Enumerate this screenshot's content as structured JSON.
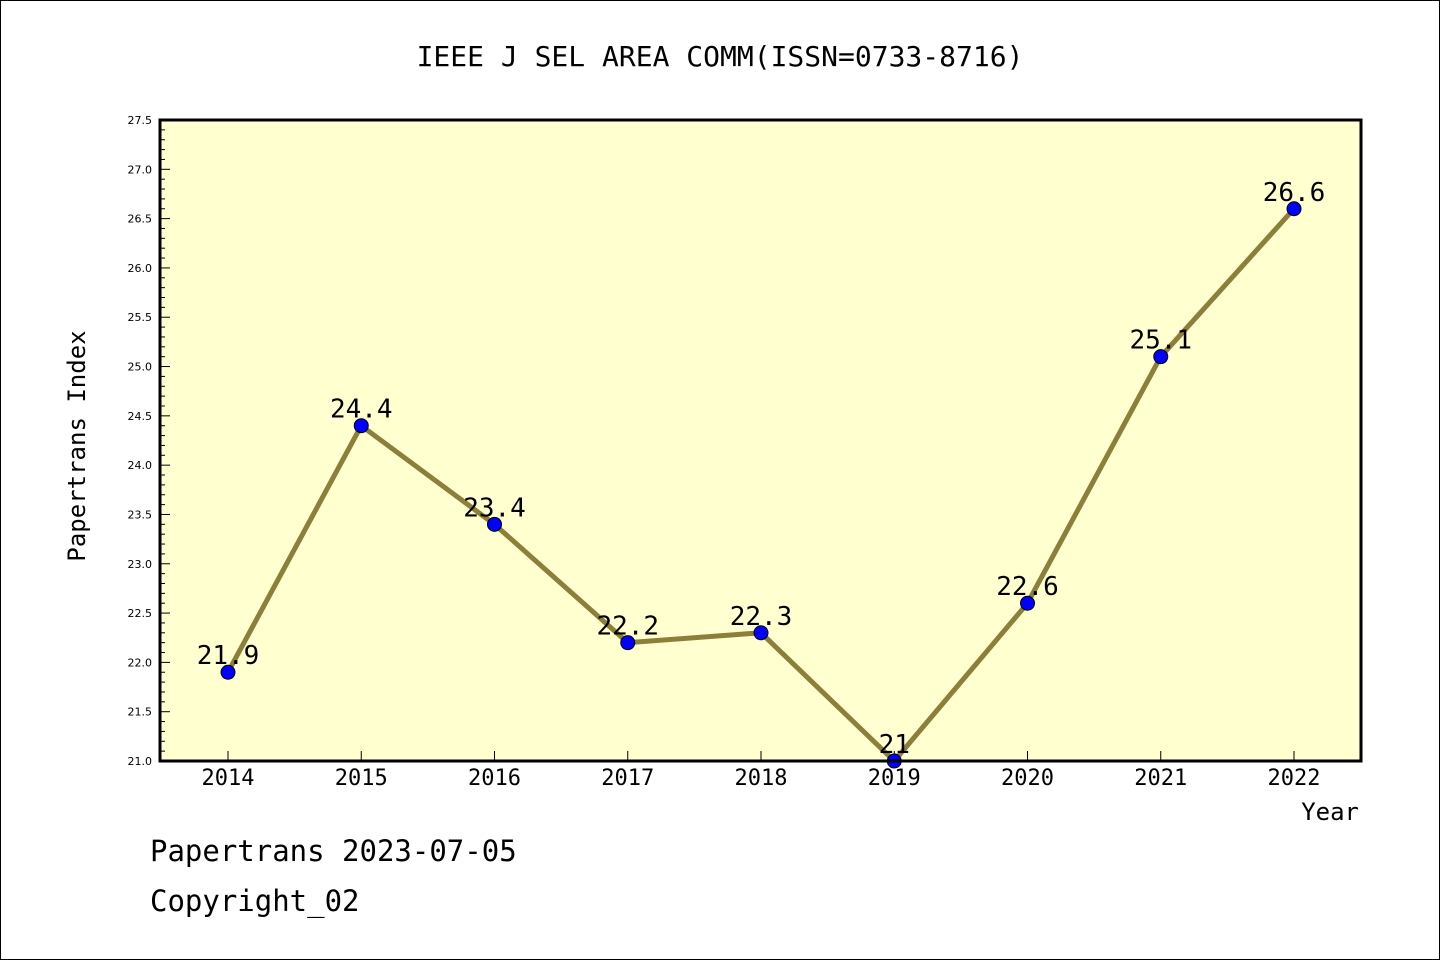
{
  "chart_data": {
    "type": "line",
    "title": "IEEE J SEL AREA COMM(ISSN=0733-8716)",
    "xlabel": "Year",
    "ylabel": "Papertrans Index",
    "categories": [
      "2014",
      "2015",
      "2016",
      "2017",
      "2018",
      "2019",
      "2020",
      "2021",
      "2022"
    ],
    "values": [
      21.9,
      24.4,
      23.4,
      22.2,
      22.3,
      21.0,
      22.6,
      25.1,
      26.6
    ],
    "data_labels": [
      "21.9",
      "24.4",
      "23.4",
      "22.2",
      "22.3",
      "21",
      "22.6",
      "25.1",
      "26.6"
    ],
    "ylim": [
      21.0,
      27.5
    ],
    "y_ticks": [
      "21.0",
      "21.5",
      "22.0",
      "22.5",
      "23.0",
      "23.5",
      "24.0",
      "24.5",
      "25.0",
      "25.5",
      "26.0",
      "26.5",
      "27.0",
      "27.5"
    ],
    "grid": false,
    "legend": "none",
    "colors": {
      "plot_background": "#ffffd0",
      "line": "#8b7f3a",
      "marker": "#0000ff",
      "axis": "#000000"
    }
  },
  "footer": {
    "line1": "Papertrans 2023-07-05",
    "line2": "Copyright_02"
  }
}
